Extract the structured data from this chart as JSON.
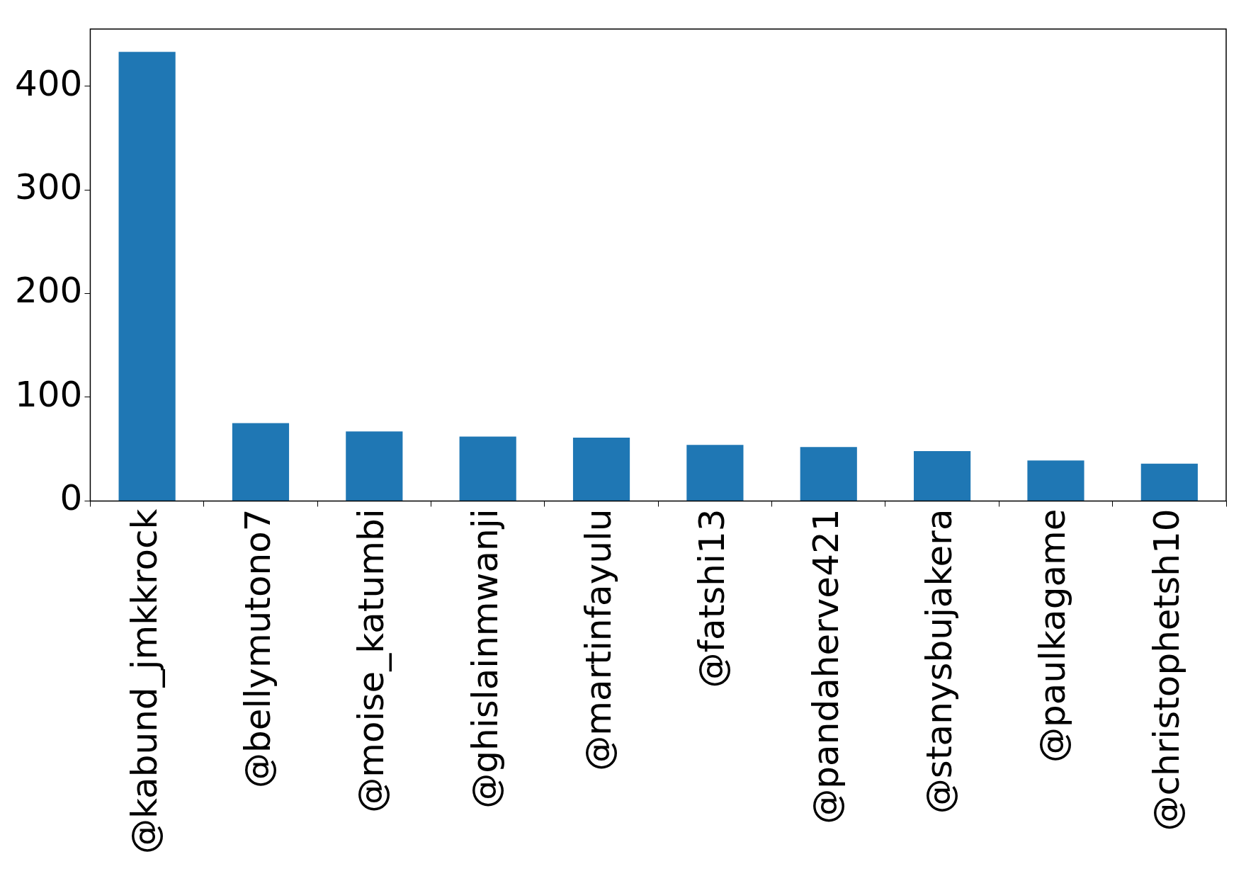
{
  "chart_data": {
    "type": "bar",
    "categories": [
      "@kabund_jmkkrock",
      "@bellymutono7",
      "@moise_katumbi",
      "@ghislainmwanji",
      "@martinfayulu",
      "@fatshi13",
      "@pandaherve421",
      "@stanysbujakera",
      "@paulkagame",
      "@christophetsh10"
    ],
    "values": [
      433,
      75,
      67,
      62,
      61,
      54,
      52,
      48,
      39,
      36
    ],
    "color": "#1f77b4",
    "ylim": [
      0,
      455
    ],
    "yticks": [
      0,
      100,
      200,
      300,
      400
    ],
    "grid": false,
    "legend": false
  }
}
